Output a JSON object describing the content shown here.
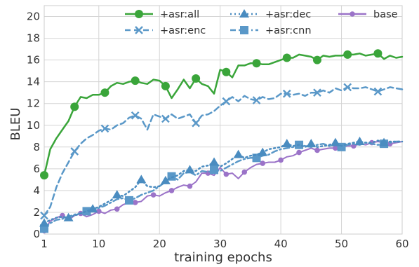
{
  "chart_data": {
    "type": "line",
    "title": "",
    "xlabel": "training epochs",
    "ylabel": "BLEU",
    "xlim": [
      1,
      60
    ],
    "ylim": [
      0,
      21
    ],
    "x_ticks": [
      1,
      10,
      20,
      30,
      40,
      50,
      60
    ],
    "y_ticks": [
      0,
      2,
      4,
      6,
      8,
      10,
      12,
      14,
      16,
      18,
      20
    ],
    "grid": true,
    "legend_position": "top-right, 3 columns",
    "series": [
      {
        "name": "+asr:all",
        "color": "#3aa53a",
        "line_style": "solid",
        "marker": "circle",
        "x": [
          1,
          2,
          3,
          4,
          5,
          6,
          7,
          8,
          9,
          10,
          11,
          12,
          13,
          14,
          15,
          16,
          17,
          18,
          19,
          20,
          21,
          22,
          23,
          24,
          25,
          26,
          27,
          28,
          29,
          30,
          31,
          32,
          33,
          34,
          35,
          36,
          37,
          38,
          39,
          40,
          41,
          42,
          43,
          44,
          45,
          46,
          47,
          48,
          49,
          50,
          51,
          52,
          53,
          54,
          55,
          56,
          57,
          58,
          59,
          60
        ],
        "y": [
          5.4,
          7.8,
          8.8,
          9.6,
          10.4,
          11.7,
          12.6,
          12.5,
          12.8,
          12.8,
          13.0,
          13.6,
          13.9,
          13.8,
          14.0,
          14.1,
          13.9,
          13.8,
          14.2,
          14.1,
          13.6,
          12.5,
          13.3,
          14.2,
          13.4,
          14.3,
          13.8,
          13.6,
          12.9,
          15.1,
          14.9,
          14.4,
          15.5,
          15.5,
          15.7,
          15.7,
          15.6,
          15.6,
          15.8,
          16.0,
          16.2,
          16.2,
          16.5,
          16.4,
          16.3,
          16.0,
          16.4,
          16.3,
          16.4,
          16.4,
          16.5,
          16.5,
          16.6,
          16.4,
          16.5,
          16.6,
          16.1,
          16.4,
          16.2,
          16.3
        ],
        "marker_x": [
          1,
          6,
          11,
          16,
          21,
          26,
          31,
          36,
          41,
          46,
          51,
          56
        ]
      },
      {
        "name": "+asr:enc",
        "color": "#5a98c8",
        "line_style": "dashed",
        "marker": "x",
        "x": [
          1,
          2,
          3,
          4,
          5,
          6,
          7,
          8,
          9,
          10,
          11,
          12,
          13,
          14,
          15,
          16,
          17,
          18,
          19,
          20,
          21,
          22,
          23,
          24,
          25,
          26,
          27,
          28,
          29,
          30,
          31,
          32,
          33,
          34,
          35,
          36,
          37,
          38,
          39,
          40,
          41,
          42,
          43,
          44,
          45,
          46,
          47,
          48,
          49,
          50,
          51,
          52,
          53,
          54,
          55,
          56,
          57,
          58,
          59,
          60
        ],
        "y": [
          1.7,
          2.5,
          4.3,
          5.6,
          6.6,
          7.6,
          8.3,
          8.8,
          9.1,
          9.5,
          9.7,
          9.6,
          10.0,
          10.2,
          10.7,
          10.9,
          10.6,
          9.6,
          11.0,
          10.8,
          10.6,
          11.0,
          10.6,
          10.8,
          11.0,
          10.2,
          10.9,
          11.0,
          11.3,
          11.8,
          12.2,
          12.6,
          12.2,
          12.7,
          12.4,
          12.3,
          12.6,
          12.4,
          12.5,
          12.9,
          12.9,
          12.8,
          12.9,
          12.7,
          13.0,
          13.0,
          13.2,
          13.0,
          13.4,
          13.2,
          13.5,
          13.4,
          13.4,
          13.5,
          13.3,
          13.1,
          13.3,
          13.5,
          13.4,
          13.3
        ],
        "marker_x": [
          1,
          6,
          11,
          16,
          21,
          26,
          31,
          36,
          41,
          46,
          51,
          56
        ]
      },
      {
        "name": "+asr:dec",
        "color": "#4a8cc0",
        "line_style": "dotted",
        "marker": "triangle",
        "x": [
          1,
          2,
          3,
          4,
          5,
          6,
          7,
          8,
          9,
          10,
          11,
          12,
          13,
          14,
          15,
          16,
          17,
          18,
          19,
          20,
          21,
          22,
          23,
          24,
          25,
          26,
          27,
          28,
          29,
          30,
          31,
          32,
          33,
          34,
          35,
          36,
          37,
          38,
          39,
          40,
          41,
          42,
          43,
          44,
          45,
          46,
          47,
          48,
          49,
          50,
          51,
          52,
          53,
          54,
          55,
          56,
          57,
          58,
          59,
          60
        ],
        "y": [
          1.0,
          1.3,
          1.5,
          1.6,
          1.5,
          1.7,
          1.9,
          2.1,
          2.3,
          2.5,
          2.8,
          3.1,
          3.6,
          3.5,
          3.9,
          4.3,
          5.0,
          4.4,
          4.3,
          4.4,
          4.9,
          5.2,
          5.4,
          5.8,
          5.9,
          5.8,
          6.2,
          6.3,
          6.6,
          6.2,
          6.5,
          6.9,
          7.3,
          7.0,
          7.2,
          7.3,
          7.5,
          7.8,
          7.9,
          8.0,
          8.3,
          8.1,
          8.2,
          8.0,
          8.3,
          8.0,
          8.1,
          8.2,
          8.4,
          8.1,
          8.3,
          8.4,
          8.5,
          8.4,
          8.4,
          8.6,
          8.4,
          8.5,
          8.5,
          8.5
        ],
        "marker_x": [
          1,
          5,
          9,
          13,
          17,
          21,
          25,
          29,
          33,
          37,
          41,
          45,
          49,
          53,
          57
        ]
      },
      {
        "name": "+asr:cnn",
        "color": "#5a98c8",
        "line_style": "dashdot",
        "marker": "square",
        "x": [
          1,
          2,
          3,
          4,
          5,
          6,
          7,
          8,
          9,
          10,
          11,
          12,
          13,
          14,
          15,
          16,
          17,
          18,
          19,
          20,
          21,
          22,
          23,
          24,
          25,
          26,
          27,
          28,
          29,
          30,
          31,
          32,
          33,
          34,
          35,
          36,
          37,
          38,
          39,
          40,
          41,
          42,
          43,
          44,
          45,
          46,
          47,
          48,
          49,
          50,
          51,
          52,
          53,
          54,
          55,
          56,
          57,
          58,
          59,
          60
        ],
        "y": [
          0.5,
          1.0,
          1.3,
          1.4,
          1.6,
          1.8,
          1.9,
          2.1,
          2.1,
          2.4,
          2.6,
          2.9,
          3.2,
          3.3,
          3.1,
          3.3,
          3.6,
          3.8,
          4.0,
          4.4,
          4.8,
          5.3,
          5.0,
          5.6,
          5.7,
          5.4,
          5.8,
          5.7,
          5.9,
          5.8,
          6.1,
          6.4,
          6.7,
          6.9,
          7.0,
          7.0,
          7.2,
          7.3,
          7.6,
          7.8,
          7.9,
          8.0,
          8.2,
          8.1,
          8.0,
          8.2,
          8.3,
          8.1,
          8.2,
          8.0,
          8.2,
          8.3,
          8.2,
          8.4,
          8.3,
          8.2,
          8.3,
          8.4,
          8.5,
          8.5
        ],
        "marker_x": [
          1,
          8,
          15,
          22,
          29,
          36,
          43,
          50,
          57
        ]
      },
      {
        "name": "base",
        "color": "#9b73c8",
        "line_style": "solid",
        "marker": "small-circle",
        "x": [
          1,
          2,
          3,
          4,
          5,
          6,
          7,
          8,
          9,
          10,
          11,
          12,
          13,
          14,
          15,
          16,
          17,
          18,
          19,
          20,
          21,
          22,
          23,
          24,
          25,
          26,
          27,
          28,
          29,
          30,
          31,
          32,
          33,
          34,
          35,
          36,
          37,
          38,
          39,
          40,
          41,
          42,
          43,
          44,
          45,
          46,
          47,
          48,
          49,
          50,
          51,
          52,
          53,
          54,
          55,
          56,
          57,
          58,
          59,
          60
        ],
        "y": [
          0.3,
          1.2,
          1.5,
          1.7,
          1.3,
          1.7,
          1.9,
          1.6,
          1.8,
          2.1,
          1.9,
          2.2,
          2.3,
          2.7,
          2.9,
          2.9,
          3.0,
          3.5,
          3.6,
          3.5,
          3.8,
          4.0,
          4.3,
          4.5,
          4.4,
          4.8,
          5.6,
          5.6,
          5.4,
          6.1,
          5.5,
          5.6,
          5.1,
          5.7,
          6.1,
          6.4,
          6.5,
          6.6,
          6.6,
          6.8,
          7.1,
          7.2,
          7.5,
          7.7,
          7.9,
          7.7,
          7.8,
          7.9,
          7.9,
          8.0,
          8.1,
          8.1,
          8.3,
          8.2,
          8.4,
          8.5,
          8.4,
          8.3,
          8.4,
          8.5
        ],
        "marker_x": [
          1,
          4,
          7,
          10,
          13,
          16,
          19,
          22,
          25,
          28,
          31,
          34,
          37,
          40,
          43,
          46,
          49,
          52,
          55,
          58
        ]
      }
    ]
  }
}
